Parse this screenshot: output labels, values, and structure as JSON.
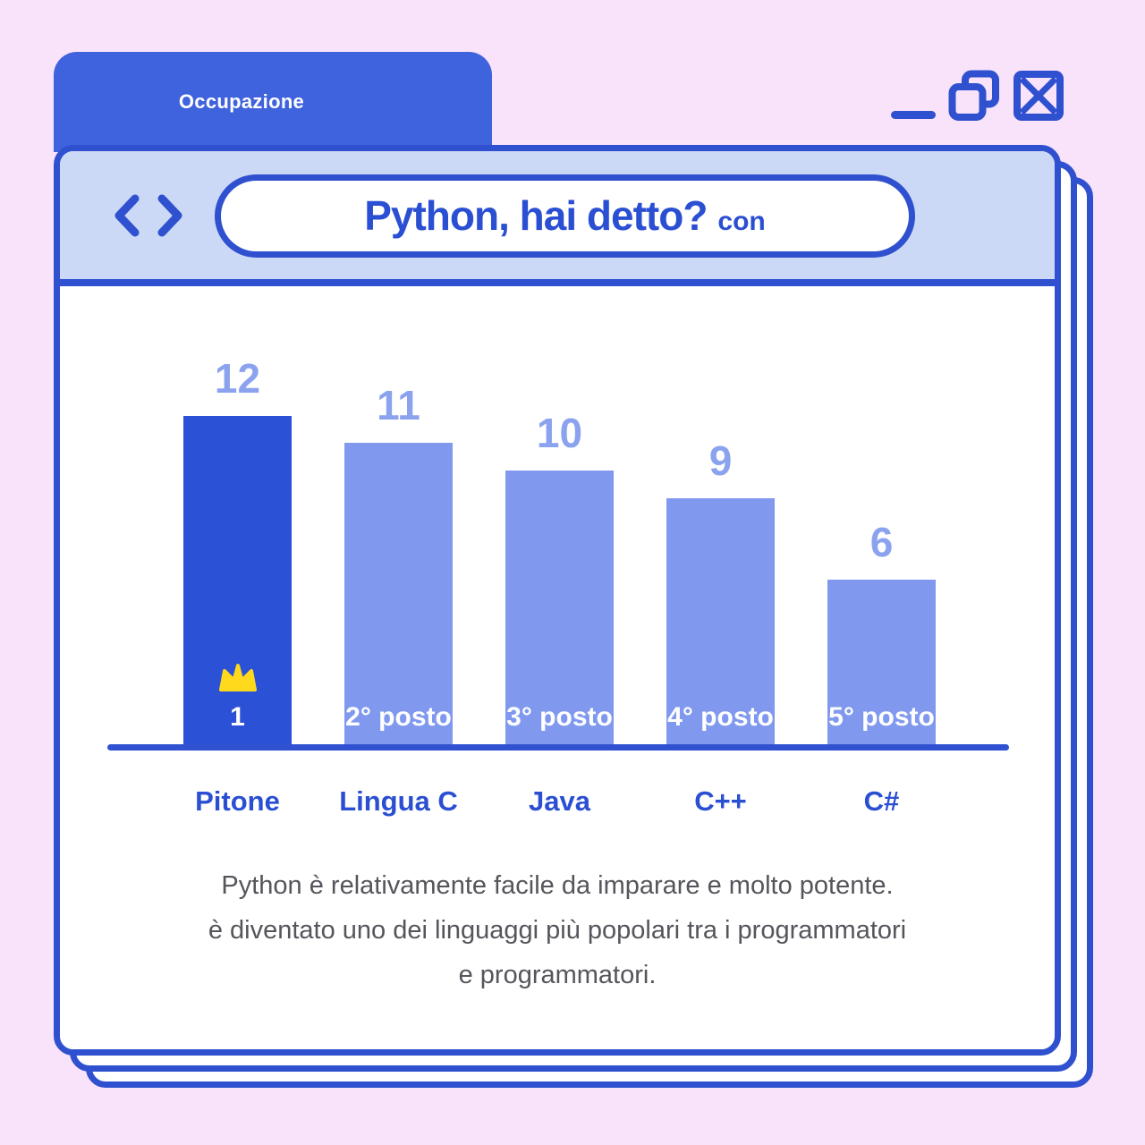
{
  "page": {
    "background_color": "#f9e3fa"
  },
  "window": {
    "tab_title": "Occupazione",
    "controls": [
      {
        "icon": "minimize-icon"
      },
      {
        "icon": "maximize-copy-icon"
      },
      {
        "icon": "close-icon"
      }
    ],
    "nav": {
      "back_icon": "chevron-left",
      "forward_icon": "chevron-right"
    },
    "address": {
      "title": "Python, hai detto?",
      "suffix": "con"
    }
  },
  "chart_data": {
    "type": "bar",
    "categories": [
      "Pitone",
      "Lingua C",
      "Java",
      "C++",
      "C#"
    ],
    "values": [
      12,
      11,
      10,
      9,
      6
    ],
    "rank_labels": [
      "1",
      "2° posto",
      "3° posto",
      "4° posto",
      "5° posto"
    ],
    "highlight_index": 0,
    "ylim": [
      0,
      12
    ],
    "grid": false,
    "legend": false,
    "colors": {
      "highlight_bar": "#2b51d6",
      "bar": "#8099ef",
      "value_label": "#8ba3ee",
      "category_label": "#2b4fd2",
      "rank_label": "#ffffff",
      "axis": "#3052d1",
      "crown": "#ffd91c"
    }
  },
  "description": {
    "lines": [
      "Python è relativamente facile da imparare e molto potente.",
      "è diventato uno dei linguaggi più popolari tra i programmatori",
      "e programmatori."
    ]
  },
  "theme": {
    "accent_blue": "#2f51cf",
    "tab_blue": "#3f62dd",
    "toolbar_blue": "#ccd9f6",
    "background_pink": "#f9e3fa",
    "title_blue": "#2b4fd2"
  }
}
